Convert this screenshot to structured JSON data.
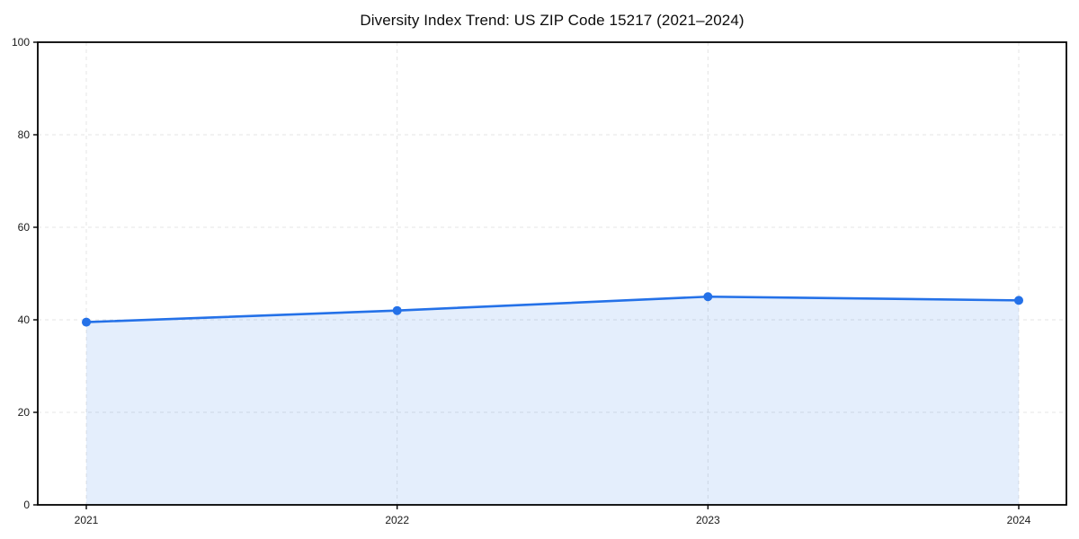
{
  "title": "Diversity Index Trend: US ZIP Code 15217 (2021–2024)",
  "chart_data": {
    "type": "line",
    "title": "Diversity Index Trend: US ZIP Code 15217 (2021–2024)",
    "categories": [
      "2021",
      "2022",
      "2023",
      "2024"
    ],
    "series": [
      {
        "name": "Diversity Index",
        "values": [
          39.5,
          42.0,
          45.0,
          44.2
        ]
      }
    ],
    "xlabel": "",
    "ylabel": "",
    "ylim": [
      0,
      100
    ],
    "yticks": [
      0,
      20,
      40,
      60,
      80,
      100
    ],
    "grid": true,
    "grid_style": "dashed",
    "legend_position": "none",
    "area_fill": true,
    "colors": {
      "line": "#2471e8",
      "marker": "#2471e8",
      "area_fill": "rgba(36, 113, 232, 0.12)",
      "grid": "#e4e4e4",
      "spine": "#000000",
      "tick_label": "#1a1a1a",
      "background": "#ffffff"
    }
  }
}
